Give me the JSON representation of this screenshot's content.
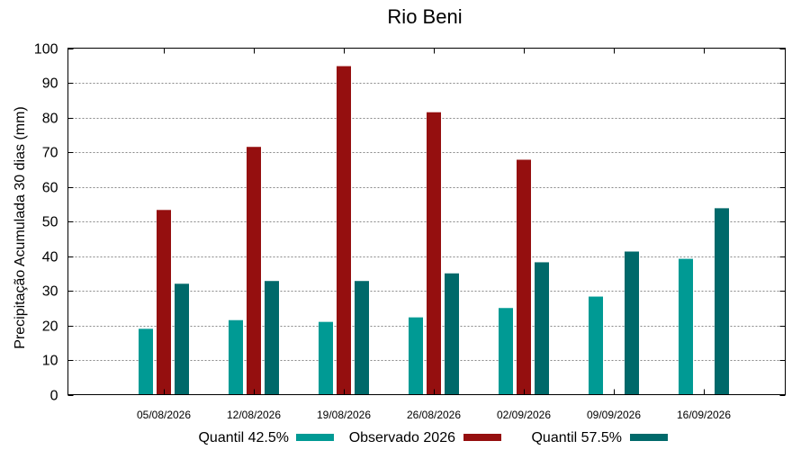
{
  "chart_data": {
    "type": "bar",
    "title": "Rio Beni",
    "xlabel": "",
    "ylabel": "Precipitação Acumulada 30 dias (mm)",
    "ylim": [
      0,
      100
    ],
    "yticks": [
      0,
      10,
      20,
      30,
      40,
      50,
      60,
      70,
      80,
      90,
      100
    ],
    "grid": "horizontal dotted",
    "legend_position": "bottom",
    "categories": [
      "05/08/2026",
      "12/08/2026",
      "19/08/2026",
      "26/08/2026",
      "02/09/2026",
      "09/09/2026",
      "16/09/2026"
    ],
    "series": [
      {
        "name": "Quantil 42.5%",
        "color": "#009a94",
        "values": [
          19,
          21.5,
          21,
          22.3,
          25,
          28.3,
          39.2
        ]
      },
      {
        "name": "Observado 2026",
        "color": "#950f0f",
        "values": [
          53.3,
          71.5,
          94.8,
          81.5,
          67.8,
          null,
          null
        ]
      },
      {
        "name": "Quantil 57.5%",
        "color": "#00696a",
        "values": [
          32,
          32.8,
          32.8,
          35,
          38.2,
          41.3,
          53.8
        ]
      }
    ]
  }
}
